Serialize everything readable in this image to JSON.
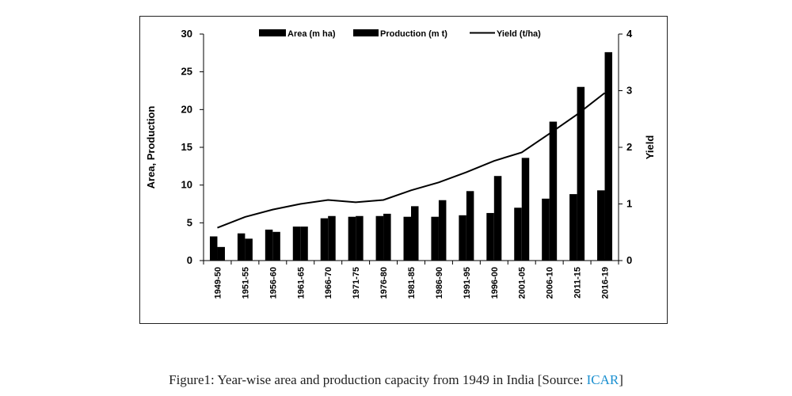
{
  "chart_data": {
    "type": "bar",
    "title": "",
    "categories": [
      "1949-50",
      "1951-55",
      "1956-60",
      "1961-65",
      "1966-70",
      "1971-75",
      "1976-80",
      "1981-85",
      "1986-90",
      "1991-95",
      "1996-00",
      "2001-05",
      "2006-10",
      "2011-15",
      "2016-19"
    ],
    "series": [
      {
        "name": "Area (m ha)",
        "type": "bar",
        "axis": "left",
        "color": "#000000",
        "values": [
          3.2,
          3.6,
          4.1,
          4.5,
          5.6,
          5.8,
          5.9,
          5.8,
          5.8,
          6.0,
          6.3,
          7.0,
          8.2,
          8.8,
          9.3
        ]
      },
      {
        "name": "Production (m t)",
        "type": "bar",
        "axis": "left",
        "color": "#000000",
        "values": [
          1.8,
          2.9,
          3.8,
          4.5,
          5.9,
          5.9,
          6.2,
          7.2,
          8.0,
          9.2,
          11.2,
          13.6,
          18.4,
          23.0,
          27.6
        ]
      },
      {
        "name": "Yield (t/ha)",
        "type": "line",
        "axis": "right",
        "color": "#000000",
        "values": [
          0.58,
          0.77,
          0.9,
          1.0,
          1.07,
          1.03,
          1.07,
          1.24,
          1.38,
          1.56,
          1.76,
          1.91,
          2.24,
          2.58,
          2.96
        ]
      }
    ],
    "ylabel": "Area, Production",
    "y2label": "Yield",
    "ylim": [
      0,
      30
    ],
    "y2lim": [
      0,
      4
    ],
    "yticks": [
      "0",
      "5",
      "10",
      "15",
      "20",
      "25",
      "30"
    ],
    "y2ticks": [
      "0",
      "1",
      "2",
      "3",
      "4"
    ],
    "grid": false,
    "legend_position": "top"
  },
  "caption": {
    "prefix": "Figure1: Year-wise area and production capacity from 1949 in India [Source: ",
    "link": "ICAR",
    "suffix": "]"
  }
}
